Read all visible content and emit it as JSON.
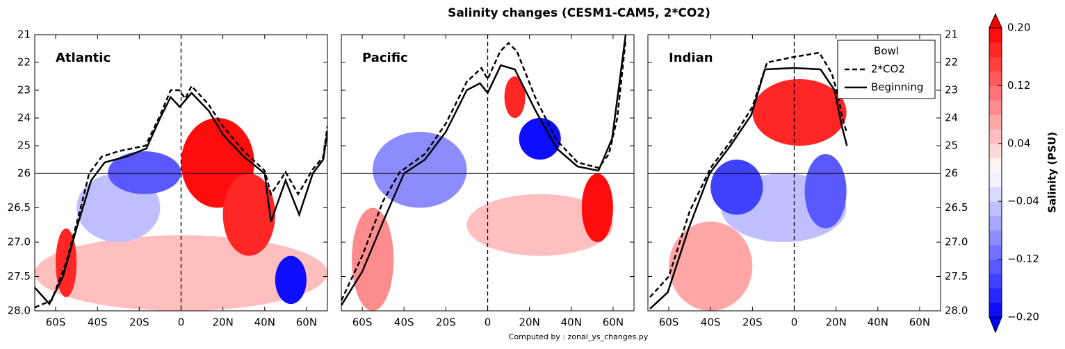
{
  "chart_data": {
    "type": "contour",
    "title": "Salinity changes (CESM1-CAM5, 2*CO2)",
    "footer": "Computed by : zonal_ys_changes.py",
    "xlim": [
      -70,
      70
    ],
    "xticks": [
      {
        "value": -60,
        "label": "60S"
      },
      {
        "value": -40,
        "label": "40S"
      },
      {
        "value": -20,
        "label": "20S"
      },
      0,
      {
        "value": 20,
        "label": "20N"
      },
      {
        "value": 40,
        "label": "40N"
      },
      {
        "value": 60,
        "label": "60N"
      }
    ],
    "ylim": [
      21,
      28
    ],
    "yticks": [
      21,
      22,
      23,
      24,
      25,
      26,
      26.5,
      {
        "value": 27,
        "label": "27.0"
      },
      27.5,
      {
        "value": 28,
        "label": "28.0"
      }
    ],
    "hline": 26,
    "vline": 0,
    "colorbar": {
      "label": "Salinity (PSU)",
      "clim": [
        -0.2,
        0.2
      ],
      "n_levels": 20,
      "ticks": [
        {
          "value": 0.2,
          "label": "0.20"
        },
        {
          "value": 0.12,
          "label": "0.12"
        },
        {
          "value": 0.04,
          "label": "0.04"
        },
        {
          "value": -0.04,
          "label": "−0.04"
        },
        {
          "value": -0.12,
          "label": "−0.12"
        },
        {
          "value": -0.2,
          "label": "−0.20"
        }
      ]
    },
    "bowl": {
      "title": "Bowl",
      "legend_position": "upper right",
      "series": [
        {
          "name": "2*CO2",
          "style": "dashed",
          "color": "#000000"
        },
        {
          "name": "Beginning",
          "style": "solid",
          "color": "#000000"
        }
      ]
    },
    "panels": [
      {
        "name": "Atlantic",
        "blobs": [
          {
            "lat": [
              -70,
              70
            ],
            "sigma": [
              26.9,
              28
            ],
            "value": 0.04
          },
          {
            "lat": [
              -50,
              -10
            ],
            "sigma": [
              26,
              27
            ],
            "value": -0.06
          },
          {
            "lat": [
              -35,
              0
            ],
            "sigma": [
              25.2,
              26.3
            ],
            "value": -0.14
          },
          {
            "lat": [
              0,
              35
            ],
            "sigma": [
              24,
              26.5
            ],
            "value": 0.2
          },
          {
            "lat": [
              20,
              45
            ],
            "sigma": [
              26,
              27.2
            ],
            "value": 0.16
          },
          {
            "lat": [
              45,
              60
            ],
            "sigma": [
              27.2,
              27.9
            ],
            "value": -0.2
          },
          {
            "lat": [
              -60,
              -50
            ],
            "sigma": [
              26.8,
              27.8
            ],
            "value": 0.16
          }
        ],
        "lines": [
          {
            "x": [
              -70,
              -62,
              -55,
              -48,
              -44,
              -38,
              -30,
              -17,
              -10,
              -5,
              -1,
              2,
              5,
              13,
              20,
              30,
              40,
              43,
              50,
              56,
              63,
              68,
              70
            ],
            "values": [
              27.95,
              27.85,
              27.3,
              26.5,
              26.0,
              25.4,
              25.2,
              25.0,
              23.9,
              23.0,
              23.0,
              23.3,
              22.85,
              23.5,
              24.3,
              25.2,
              25.9,
              26.3,
              25.95,
              26.3,
              25.85,
              25.4,
              24.3
            ]
          },
          {
            "x": [
              -70,
              -63,
              -56.5,
              -50,
              -43,
              -36.5,
              -26.6,
              -16.6,
              -10,
              -5,
              -0.7,
              5,
              13.3,
              20,
              30,
              40,
              43,
              50,
              56.5,
              63,
              68,
              70
            ],
            "values": [
              27.66,
              27.9,
              27.5,
              26.8,
              26.1,
              25.6,
              25.4,
              25.1,
              24.0,
              23.25,
              23.6,
              23.1,
              23.75,
              24.6,
              25.4,
              26.0,
              26.7,
              26.1,
              26.6,
              26.0,
              25.5,
              24.5
            ]
          }
        ]
      },
      {
        "name": "Pacific",
        "blobs": [
          {
            "lat": [
              -10,
              60
            ],
            "sigma": [
              26.3,
              27.2
            ],
            "value": 0.04
          },
          {
            "lat": [
              -65,
              -45
            ],
            "sigma": [
              26.5,
              28
            ],
            "value": 0.08
          },
          {
            "lat": [
              -55,
              -10
            ],
            "sigma": [
              24.5,
              26.5
            ],
            "value": -0.1
          },
          {
            "lat": [
              8,
              18
            ],
            "sigma": [
              22.5,
              24
            ],
            "value": 0.16
          },
          {
            "lat": [
              15,
              35
            ],
            "sigma": [
              24,
              25.5
            ],
            "value": -0.2
          },
          {
            "lat": [
              45,
              60
            ],
            "sigma": [
              26,
              27
            ],
            "value": 0.2
          }
        ],
        "lines": [
          {
            "x": [
              -70,
              -60,
              -50,
              -42,
              -30,
              -20,
              -10,
              -3,
              0,
              6,
              10,
              14,
              23,
              33,
              43,
              53,
              58,
              62,
              66
            ],
            "values": [
              27.85,
              27.2,
              26.4,
              25.95,
              25.3,
              24.2,
              22.7,
              22.2,
              22.6,
              21.6,
              21.3,
              21.6,
              23.3,
              24.8,
              25.6,
              25.8,
              25.3,
              24.0,
              21.2
            ]
          },
          {
            "x": [
              -70,
              -60,
              -50,
              -40,
              -30,
              -20,
              -10,
              -3.7,
              0,
              6.3,
              13,
              23,
              33,
              43,
              53,
              59.5,
              63,
              66
            ],
            "values": [
              27.92,
              27.43,
              26.7,
              26.0,
              25.5,
              24.5,
              23.0,
              22.75,
              23.1,
              22.1,
              22.25,
              23.75,
              25.1,
              25.75,
              25.9,
              24.75,
              22.75,
              21.0
            ]
          }
        ]
      },
      {
        "name": "Indian",
        "blobs": [
          {
            "lat": [
              -35,
              25
            ],
            "sigma": [
              26,
              27
            ],
            "value": -0.06
          },
          {
            "lat": [
              -60,
              -20
            ],
            "sigma": [
              26.7,
              28
            ],
            "value": 0.06
          },
          {
            "lat": [
              -20,
              25
            ],
            "sigma": [
              22.6,
              25
            ],
            "value": 0.16
          },
          {
            "lat": [
              -40,
              -15
            ],
            "sigma": [
              25.5,
              26.6
            ],
            "value": -0.16
          },
          {
            "lat": [
              5,
              25
            ],
            "sigma": [
              25.3,
              26.8
            ],
            "value": -0.14
          }
        ],
        "lines": [
          {
            "x": [
              -69,
              -60,
              -50,
              -40,
              -30,
              -20,
              -13,
              0,
              12,
              18,
              21,
              23,
              25
            ],
            "values": [
              27.8,
              27.5,
              26.55,
              25.8,
              24.8,
              23.6,
              22.0,
              21.8,
              21.65,
              22.4,
              23.2,
              24.0,
              24.5
            ]
          },
          {
            "x": [
              -69,
              -60.5,
              -50.5,
              -40.5,
              -30.5,
              -20.6,
              -14,
              0,
              12.6,
              19.3,
              22.6,
              25.2
            ],
            "values": [
              27.97,
              27.73,
              26.8,
              26.0,
              25.0,
              23.9,
              22.25,
              22.2,
              22.25,
              23.0,
              24.25,
              25.0
            ]
          }
        ]
      }
    ]
  }
}
